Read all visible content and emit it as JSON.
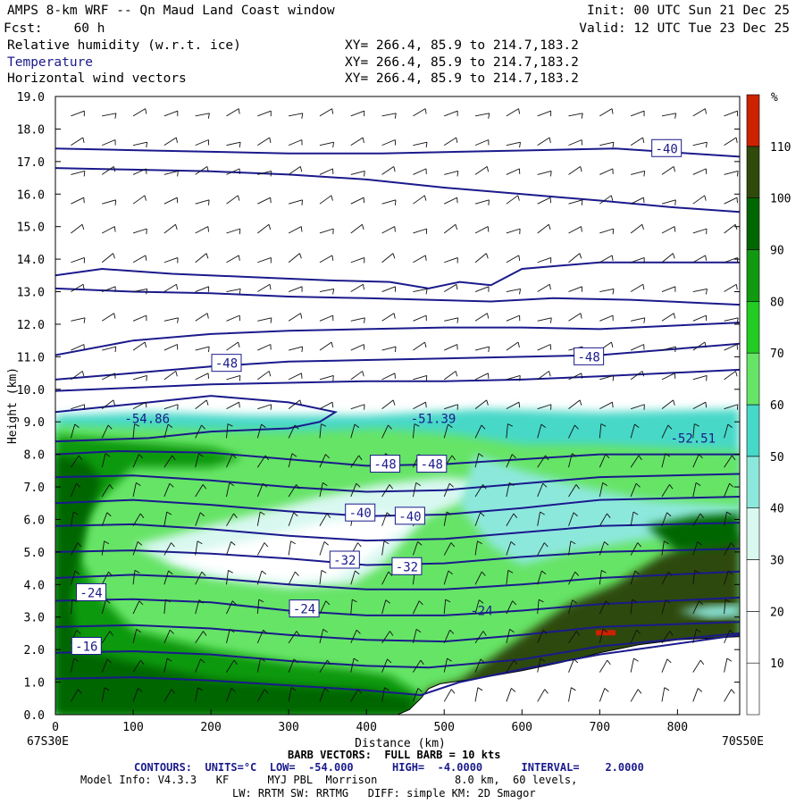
{
  "header": {
    "title": "AMPS 8-km WRF -- Qn Maud Land Coast window",
    "init": "Init: 00 UTC Sun 21 Dec 25",
    "fcst_label": "Fcst:",
    "fcst_value": "60 h",
    "valid": "Valid: 12 UTC Tue 23 Dec 25",
    "fields": [
      {
        "name": "Relative humidity (w.r.t. ice)",
        "xy": "XY= 266.4, 85.9 to 214.7,183.2"
      },
      {
        "name": "Temperature",
        "xy": "XY= 266.4, 85.9 to 214.7,183.2"
      },
      {
        "name": "Horizontal wind vectors",
        "xy": "XY= 266.4, 85.9 to 214.7,183.2"
      }
    ]
  },
  "colors": {
    "temperature_contour": "#1a1a8c",
    "terrain": "#ffffff",
    "rh_palette": [
      "#ffffff",
      "#ffffff",
      "#ffffff",
      "#d8f8f0",
      "#8de8dc",
      "#46d8c8",
      "#66e466",
      "#22cc22",
      "#119911",
      "#006600",
      "#2f4a0a",
      "#3d5a0a",
      "#cc2200"
    ]
  },
  "chart_data": {
    "type": "heatmap",
    "title": "",
    "xlabel": "Distance (km)",
    "ylabel": "Height (km)",
    "xlim": [
      0,
      880
    ],
    "ylim": [
      0,
      19
    ],
    "x_ticks": [
      0,
      100,
      200,
      300,
      400,
      500,
      600,
      700,
      800
    ],
    "y_ticks": [
      "0.0",
      "1.0",
      "2.0",
      "3.0",
      "4.0",
      "5.0",
      "6.0",
      "7.0",
      "8.0",
      "9.0",
      "10.0",
      "11.0",
      "12.0",
      "13.0",
      "14.0",
      "15.0",
      "16.0",
      "17.0",
      "18.0",
      "19.0"
    ],
    "x_endpoints": [
      "67S30E",
      "70S50E"
    ],
    "colorbar": {
      "unit": "%",
      "ticks": [
        10,
        20,
        30,
        40,
        50,
        60,
        70,
        80,
        90,
        100,
        110
      ]
    },
    "terrain_height": [
      {
        "x": 0,
        "h": 0.0
      },
      {
        "x": 440,
        "h": 0.0
      },
      {
        "x": 455,
        "h": 0.15
      },
      {
        "x": 470,
        "h": 0.5
      },
      {
        "x": 480,
        "h": 0.8
      },
      {
        "x": 495,
        "h": 0.95
      },
      {
        "x": 540,
        "h": 1.1
      },
      {
        "x": 600,
        "h": 1.35
      },
      {
        "x": 650,
        "h": 1.6
      },
      {
        "x": 700,
        "h": 1.9
      },
      {
        "x": 750,
        "h": 2.15
      },
      {
        "x": 800,
        "h": 2.3
      },
      {
        "x": 880,
        "h": 2.4
      }
    ],
    "contour_labels": [
      {
        "text": "-40",
        "x": 786,
        "y": 17.4,
        "boxed": true
      },
      {
        "text": "-48",
        "x": 220,
        "y": 10.8,
        "boxed": true
      },
      {
        "text": "-48",
        "x": 686,
        "y": 11.0,
        "boxed": true
      },
      {
        "text": "-54.86",
        "x": 118,
        "y": 9.1,
        "boxed": false
      },
      {
        "text": "-51.39",
        "x": 486,
        "y": 9.1,
        "boxed": false
      },
      {
        "text": "-52.51",
        "x": 820,
        "y": 8.5,
        "boxed": false
      },
      {
        "text": "-48",
        "x": 424,
        "y": 7.7,
        "boxed": true
      },
      {
        "text": "-48",
        "x": 484,
        "y": 7.7,
        "boxed": true
      },
      {
        "text": "-40",
        "x": 392,
        "y": 6.2,
        "boxed": true
      },
      {
        "text": "-40",
        "x": 456,
        "y": 6.1,
        "boxed": true
      },
      {
        "text": "-32",
        "x": 372,
        "y": 4.75,
        "boxed": true
      },
      {
        "text": "-32",
        "x": 452,
        "y": 4.55,
        "boxed": true
      },
      {
        "text": "-24",
        "x": 46,
        "y": 3.75,
        "boxed": true
      },
      {
        "text": "-24",
        "x": 320,
        "y": 3.25,
        "boxed": true
      },
      {
        "text": "-24",
        "x": 548,
        "y": 3.2,
        "boxed": false
      },
      {
        "text": "-16",
        "x": 40,
        "y": 2.1,
        "boxed": true
      }
    ],
    "temperature_contours": [
      {
        "pts": [
          [
            0,
            17.4
          ],
          [
            100,
            17.35
          ],
          [
            200,
            17.3
          ],
          [
            300,
            17.25
          ],
          [
            420,
            17.25
          ],
          [
            520,
            17.3
          ],
          [
            620,
            17.35
          ],
          [
            720,
            17.4
          ],
          [
            880,
            17.15
          ]
        ]
      },
      {
        "pts": [
          [
            0,
            16.8
          ],
          [
            100,
            16.75
          ],
          [
            200,
            16.7
          ],
          [
            300,
            16.6
          ],
          [
            400,
            16.45
          ],
          [
            500,
            16.2
          ],
          [
            600,
            16.0
          ],
          [
            700,
            15.8
          ],
          [
            790,
            15.6
          ],
          [
            880,
            15.45
          ]
        ]
      },
      {
        "pts": [
          [
            0,
            13.5
          ],
          [
            60,
            13.7
          ],
          [
            150,
            13.55
          ],
          [
            250,
            13.45
          ],
          [
            350,
            13.35
          ],
          [
            430,
            13.3
          ],
          [
            480,
            13.1
          ],
          [
            520,
            13.3
          ],
          [
            560,
            13.2
          ],
          [
            600,
            13.7
          ],
          [
            700,
            13.9
          ],
          [
            880,
            13.9
          ]
        ]
      },
      {
        "pts": [
          [
            0,
            13.1
          ],
          [
            100,
            13.0
          ],
          [
            200,
            12.95
          ],
          [
            300,
            12.85
          ],
          [
            400,
            12.8
          ],
          [
            480,
            12.75
          ],
          [
            560,
            12.7
          ],
          [
            640,
            12.8
          ],
          [
            740,
            12.75
          ],
          [
            880,
            12.6
          ]
        ]
      },
      {
        "pts": [
          [
            0,
            11.05
          ],
          [
            100,
            11.5
          ],
          [
            200,
            11.7
          ],
          [
            300,
            11.8
          ],
          [
            400,
            11.85
          ],
          [
            500,
            11.9
          ],
          [
            600,
            11.9
          ],
          [
            700,
            11.85
          ],
          [
            880,
            12.05
          ]
        ]
      },
      {
        "pts": [
          [
            0,
            10.3
          ],
          [
            100,
            10.5
          ],
          [
            200,
            10.7
          ],
          [
            300,
            10.85
          ],
          [
            400,
            10.9
          ],
          [
            500,
            10.95
          ],
          [
            600,
            11.0
          ],
          [
            700,
            11.05
          ],
          [
            880,
            11.4
          ]
        ]
      },
      {
        "pts": [
          [
            0,
            9.95
          ],
          [
            100,
            10.05
          ],
          [
            200,
            10.15
          ],
          [
            300,
            10.2
          ],
          [
            400,
            10.25
          ],
          [
            500,
            10.25
          ],
          [
            600,
            10.3
          ],
          [
            700,
            10.4
          ],
          [
            880,
            10.6
          ]
        ]
      },
      {
        "pts": [
          [
            0,
            9.3
          ],
          [
            100,
            9.55
          ],
          [
            200,
            9.8
          ],
          [
            300,
            9.6
          ],
          [
            360,
            9.3
          ],
          [
            340,
            9.0
          ],
          [
            300,
            8.8
          ],
          [
            200,
            8.7
          ],
          [
            120,
            8.5
          ],
          [
            0,
            8.4
          ]
        ]
      },
      {
        "pts": [
          [
            0,
            8.0
          ],
          [
            80,
            8.1
          ],
          [
            200,
            8.05
          ],
          [
            300,
            7.85
          ],
          [
            400,
            7.65
          ],
          [
            500,
            7.7
          ],
          [
            600,
            7.85
          ],
          [
            700,
            8.0
          ],
          [
            880,
            8.0
          ]
        ]
      },
      {
        "pts": [
          [
            0,
            7.3
          ],
          [
            100,
            7.35
          ],
          [
            200,
            7.2
          ],
          [
            300,
            7.0
          ],
          [
            400,
            6.85
          ],
          [
            500,
            6.9
          ],
          [
            600,
            7.1
          ],
          [
            700,
            7.3
          ],
          [
            880,
            7.4
          ]
        ]
      },
      {
        "pts": [
          [
            0,
            6.5
          ],
          [
            100,
            6.6
          ],
          [
            200,
            6.45
          ],
          [
            300,
            6.25
          ],
          [
            400,
            6.1
          ],
          [
            500,
            6.15
          ],
          [
            600,
            6.35
          ],
          [
            700,
            6.6
          ],
          [
            880,
            6.7
          ]
        ]
      },
      {
        "pts": [
          [
            0,
            5.8
          ],
          [
            100,
            5.85
          ],
          [
            200,
            5.7
          ],
          [
            300,
            5.5
          ],
          [
            400,
            5.35
          ],
          [
            500,
            5.4
          ],
          [
            600,
            5.6
          ],
          [
            700,
            5.8
          ],
          [
            880,
            5.9
          ]
        ]
      },
      {
        "pts": [
          [
            0,
            5.0
          ],
          [
            100,
            5.05
          ],
          [
            200,
            4.95
          ],
          [
            300,
            4.8
          ],
          [
            400,
            4.6
          ],
          [
            500,
            4.65
          ],
          [
            600,
            4.85
          ],
          [
            700,
            5.0
          ],
          [
            880,
            5.1
          ]
        ]
      },
      {
        "pts": [
          [
            0,
            4.2
          ],
          [
            100,
            4.3
          ],
          [
            200,
            4.2
          ],
          [
            300,
            4.0
          ],
          [
            400,
            3.85
          ],
          [
            500,
            3.85
          ],
          [
            600,
            4.0
          ],
          [
            700,
            4.2
          ],
          [
            880,
            4.4
          ]
        ]
      },
      {
        "pts": [
          [
            0,
            3.5
          ],
          [
            100,
            3.55
          ],
          [
            200,
            3.45
          ],
          [
            300,
            3.2
          ],
          [
            400,
            3.05
          ],
          [
            500,
            3.05
          ],
          [
            600,
            3.2
          ],
          [
            700,
            3.4
          ],
          [
            880,
            3.6
          ]
        ]
      },
      {
        "pts": [
          [
            0,
            2.7
          ],
          [
            100,
            2.75
          ],
          [
            200,
            2.65
          ],
          [
            300,
            2.45
          ],
          [
            400,
            2.3
          ],
          [
            500,
            2.25
          ],
          [
            600,
            2.45
          ],
          [
            700,
            2.7
          ],
          [
            880,
            2.85
          ]
        ]
      },
      {
        "pts": [
          [
            0,
            1.9
          ],
          [
            100,
            1.95
          ],
          [
            200,
            1.85
          ],
          [
            300,
            1.65
          ],
          [
            400,
            1.5
          ],
          [
            480,
            1.45
          ],
          [
            600,
            1.7
          ],
          [
            700,
            2.1
          ],
          [
            880,
            2.5
          ]
        ]
      },
      {
        "pts": [
          [
            0,
            1.1
          ],
          [
            100,
            1.15
          ],
          [
            200,
            1.05
          ],
          [
            300,
            0.9
          ],
          [
            400,
            0.75
          ],
          [
            470,
            0.6
          ],
          [
            520,
            1.0
          ],
          [
            600,
            1.4
          ],
          [
            700,
            1.85
          ],
          [
            880,
            2.45
          ]
        ]
      }
    ]
  },
  "footer": {
    "barb_line": "BARB VECTORS:  FULL BARB = 10 kts",
    "contours_prefix": "CONTOURS:  UNITS=°C",
    "contours_low": "LOW=  -54.000",
    "contours_high": "HIGH=  -4.0000",
    "contours_interval": "INTERVAL=    2.0000",
    "model_line1": "Model Info: V4.3.3   KF      MYJ PBL  Morrison            8.0 km,  60 levels,",
    "model_line2": "LW: RRTM SW: RRTMG   DIFF: simple KM: 2D Smagor"
  }
}
